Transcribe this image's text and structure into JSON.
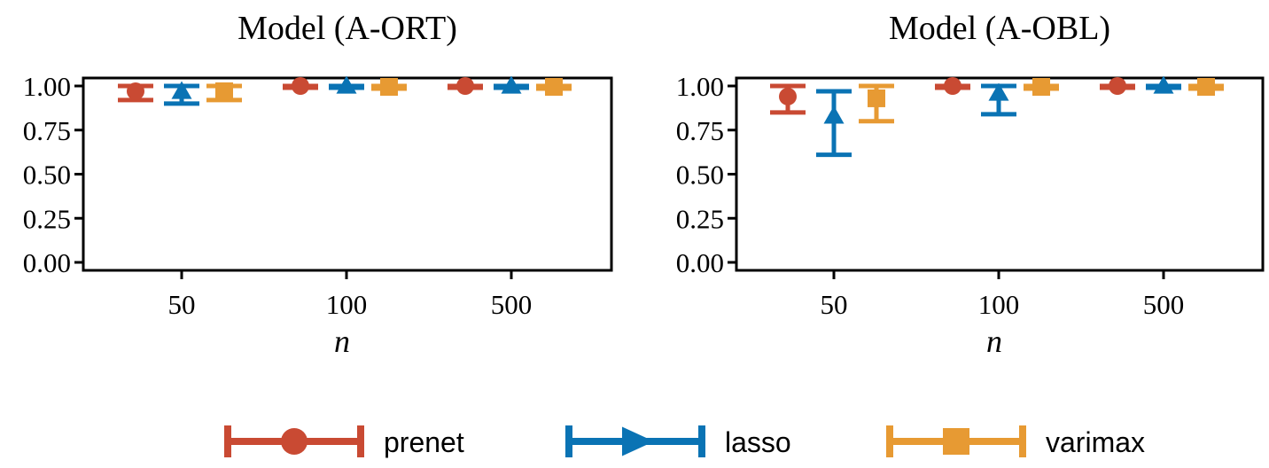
{
  "chart_data": [
    {
      "type": "errorbar",
      "title": "Model (A-ORT)",
      "xlabel": "n",
      "ylabel": "",
      "ylim": [
        0,
        1.05
      ],
      "yticks": [
        "0.00",
        "0.25",
        "0.50",
        "0.75",
        "1.00"
      ],
      "categories": [
        "50",
        "100",
        "500"
      ],
      "series": [
        {
          "name": "prenet",
          "color": "#c94a33",
          "marker": "circle",
          "mean": [
            0.97,
            1.0,
            1.0
          ],
          "lower": [
            0.92,
            0.99,
            0.99
          ],
          "upper": [
            1.0,
            1.0,
            1.0
          ]
        },
        {
          "name": "lasso",
          "color": "#0a73b4",
          "marker": "triangle",
          "mean": [
            0.97,
            1.0,
            1.0
          ],
          "lower": [
            0.9,
            0.99,
            0.99
          ],
          "upper": [
            1.0,
            1.0,
            1.0
          ]
        },
        {
          "name": "varimax",
          "color": "#e79a33",
          "marker": "square",
          "mean": [
            0.97,
            0.995,
            0.995
          ],
          "lower": [
            0.92,
            0.985,
            0.985
          ],
          "upper": [
            1.0,
            1.0,
            1.0
          ]
        }
      ]
    },
    {
      "type": "errorbar",
      "title": "Model (A-OBL)",
      "xlabel": "n",
      "ylabel": "",
      "ylim": [
        0,
        1.05
      ],
      "yticks": [
        "0.00",
        "0.25",
        "0.50",
        "0.75",
        "1.00"
      ],
      "categories": [
        "50",
        "100",
        "500"
      ],
      "series": [
        {
          "name": "prenet",
          "color": "#c94a33",
          "marker": "circle",
          "mean": [
            0.94,
            1.0,
            1.0
          ],
          "lower": [
            0.85,
            0.99,
            0.99
          ],
          "upper": [
            1.0,
            1.0,
            1.0
          ]
        },
        {
          "name": "lasso",
          "color": "#0a73b4",
          "marker": "triangle",
          "mean": [
            0.83,
            0.96,
            1.0
          ],
          "lower": [
            0.61,
            0.84,
            0.99
          ],
          "upper": [
            0.97,
            1.0,
            1.0
          ]
        },
        {
          "name": "varimax",
          "color": "#e79a33",
          "marker": "square",
          "mean": [
            0.93,
            0.995,
            0.995
          ],
          "lower": [
            0.8,
            0.985,
            0.985
          ],
          "upper": [
            1.0,
            1.0,
            1.0
          ]
        }
      ]
    }
  ],
  "legend": [
    {
      "label": "prenet",
      "color": "#c94a33",
      "marker": "circle"
    },
    {
      "label": "lasso",
      "color": "#0a73b4",
      "marker": "triangle"
    },
    {
      "label": "varimax",
      "color": "#e79a33",
      "marker": "square"
    }
  ]
}
